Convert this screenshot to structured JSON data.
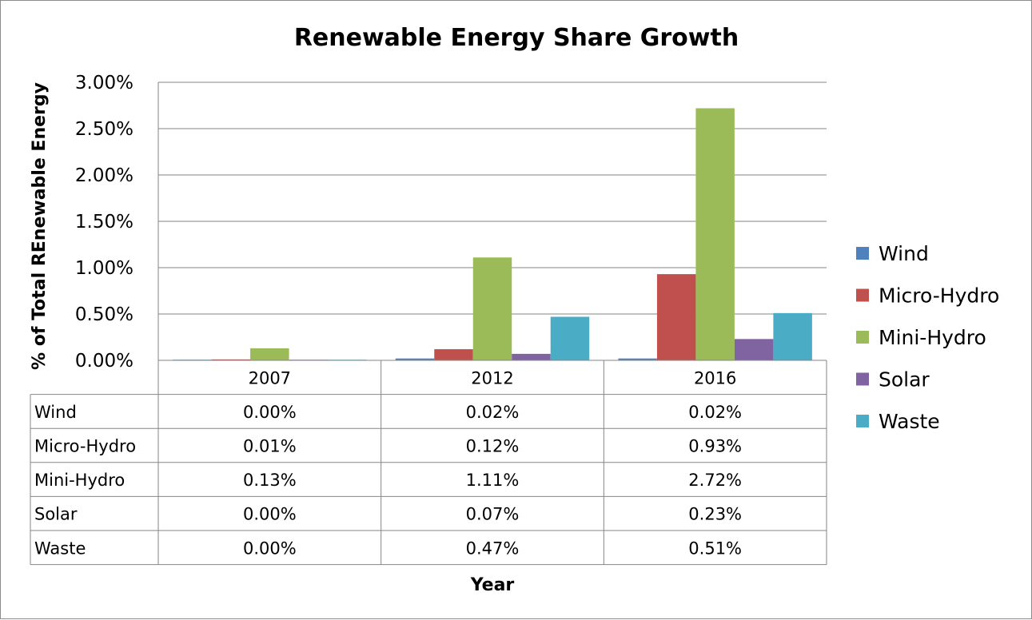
{
  "chart_data": {
    "type": "bar",
    "title": "Renewable Energy Share Growth",
    "xlabel": "Year",
    "ylabel": "% of Total REnewable Energy",
    "categories": [
      "2007",
      "2012",
      "2016"
    ],
    "ylim": [
      0,
      3.0
    ],
    "yticks": [
      "0.00%",
      "0.50%",
      "1.00%",
      "1.50%",
      "2.00%",
      "2.50%",
      "3.00%"
    ],
    "grid": true,
    "legend_position": "right",
    "data_table": true,
    "series": [
      {
        "name": "Wind",
        "color": "#4F81BD",
        "values": [
          0.0,
          0.02,
          0.02
        ],
        "labels": [
          "0.00%",
          "0.02%",
          "0.02%"
        ]
      },
      {
        "name": "Micro-Hydro",
        "color": "#C0504D",
        "values": [
          0.01,
          0.12,
          0.93
        ],
        "labels": [
          "0.01%",
          "0.12%",
          "0.93%"
        ]
      },
      {
        "name": "Mini-Hydro",
        "color": "#9BBB59",
        "values": [
          0.13,
          1.11,
          2.72
        ],
        "labels": [
          "0.13%",
          "1.11%",
          "2.72%"
        ]
      },
      {
        "name": "Solar",
        "color": "#8064A2",
        "values": [
          0.0,
          0.07,
          0.23
        ],
        "labels": [
          "0.00%",
          "0.07%",
          "0.23%"
        ]
      },
      {
        "name": "Waste",
        "color": "#4BACC6",
        "values": [
          0.0,
          0.47,
          0.51
        ],
        "labels": [
          "0.00%",
          "0.47%",
          "0.51%"
        ]
      }
    ]
  }
}
